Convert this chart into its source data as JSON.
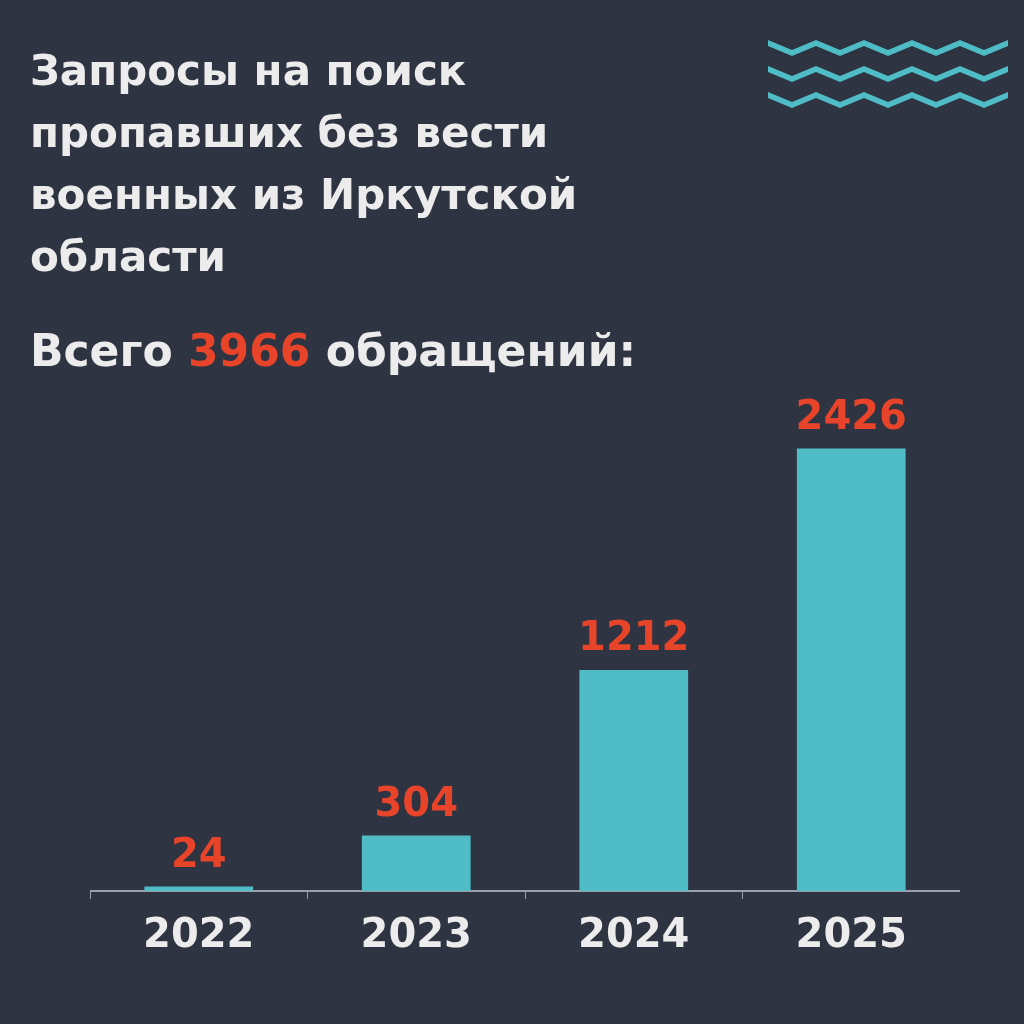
{
  "chart_data": {
    "type": "bar",
    "title": "Запросы на поиск пропавших без вести военных из Иркутской области",
    "subtitle": "Всего 3966 обращений:",
    "categories": [
      "2022",
      "2023",
      "2024",
      "2025"
    ],
    "values": [
      24,
      304,
      1212,
      2426
    ],
    "color": "#4fbcc6",
    "data_labels": true,
    "grid": false
  }
}
